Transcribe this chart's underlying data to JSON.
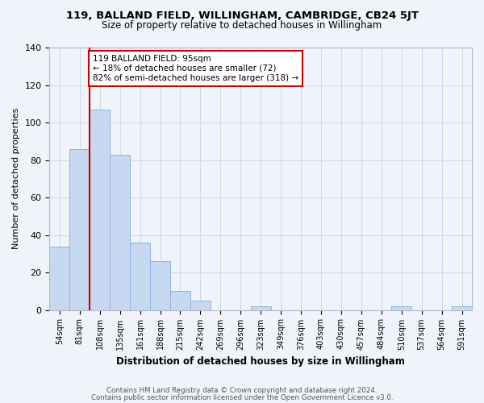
{
  "title": "119, BALLAND FIELD, WILLINGHAM, CAMBRIDGE, CB24 5JT",
  "subtitle": "Size of property relative to detached houses in Willingham",
  "xlabel": "Distribution of detached houses by size in Willingham",
  "ylabel": "Number of detached properties",
  "bar_labels": [
    "54sqm",
    "81sqm",
    "108sqm",
    "135sqm",
    "161sqm",
    "188sqm",
    "215sqm",
    "242sqm",
    "269sqm",
    "296sqm",
    "323sqm",
    "349sqm",
    "376sqm",
    "403sqm",
    "430sqm",
    "457sqm",
    "484sqm",
    "510sqm",
    "537sqm",
    "564sqm",
    "591sqm"
  ],
  "bar_values": [
    34,
    86,
    107,
    83,
    36,
    26,
    10,
    5,
    0,
    0,
    2,
    0,
    0,
    0,
    0,
    0,
    0,
    2,
    0,
    0,
    2
  ],
  "bar_color": "#c6d9f0",
  "bar_edge_color": "#8db3e2",
  "property_line_x": 1.5,
  "annotation_title": "119 BALLAND FIELD: 95sqm",
  "annotation_line1": "← 18% of detached houses are smaller (72)",
  "annotation_line2": "82% of semi-detached houses are larger (318) →",
  "annotation_box_color": "#cc0000",
  "vline_color": "#cc0000",
  "ylim": [
    0,
    140
  ],
  "yticks": [
    0,
    20,
    40,
    60,
    80,
    100,
    120,
    140
  ],
  "grid_color": "#d0d8e8",
  "bg_color": "#f0f4fa",
  "footer1": "Contains HM Land Registry data © Crown copyright and database right 2024.",
  "footer2": "Contains public sector information licensed under the Open Government Licence v3.0."
}
